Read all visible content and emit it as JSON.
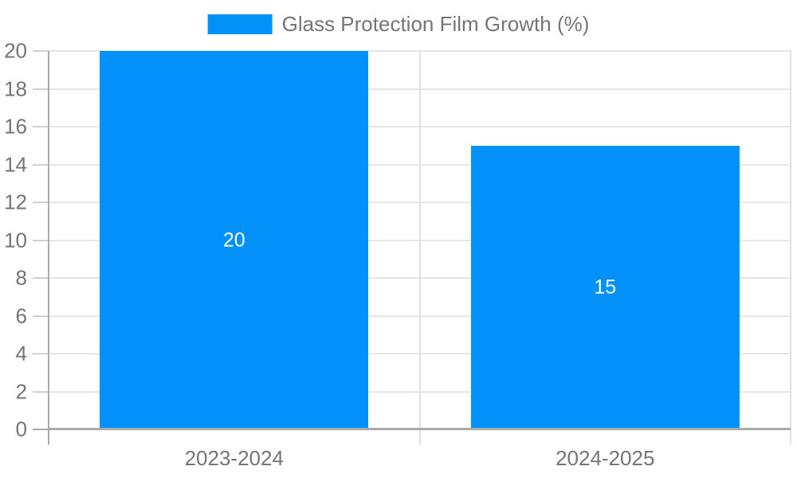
{
  "chart_data": {
    "type": "bar",
    "title": "",
    "categories": [
      "2023-2024",
      "2024-2025"
    ],
    "series": [
      {
        "name": "Glass Protection Film Growth (%)",
        "values": [
          20,
          15
        ],
        "color": "#0291f9"
      }
    ],
    "bar_value_labels": [
      "20",
      "15"
    ],
    "ylim": [
      0,
      20
    ],
    "yticks": [
      0,
      2,
      4,
      6,
      8,
      10,
      12,
      14,
      16,
      18,
      20
    ],
    "grid": true,
    "legend_position": "top-center"
  },
  "colors": {
    "bar": "#0291f9",
    "axis_text": "#757575",
    "gridline": "#e6e6e6",
    "axis_line": "#ababab",
    "baseline": "#a9a9a9",
    "bar_label_text": "#ffffff",
    "background": "#ffffff"
  }
}
